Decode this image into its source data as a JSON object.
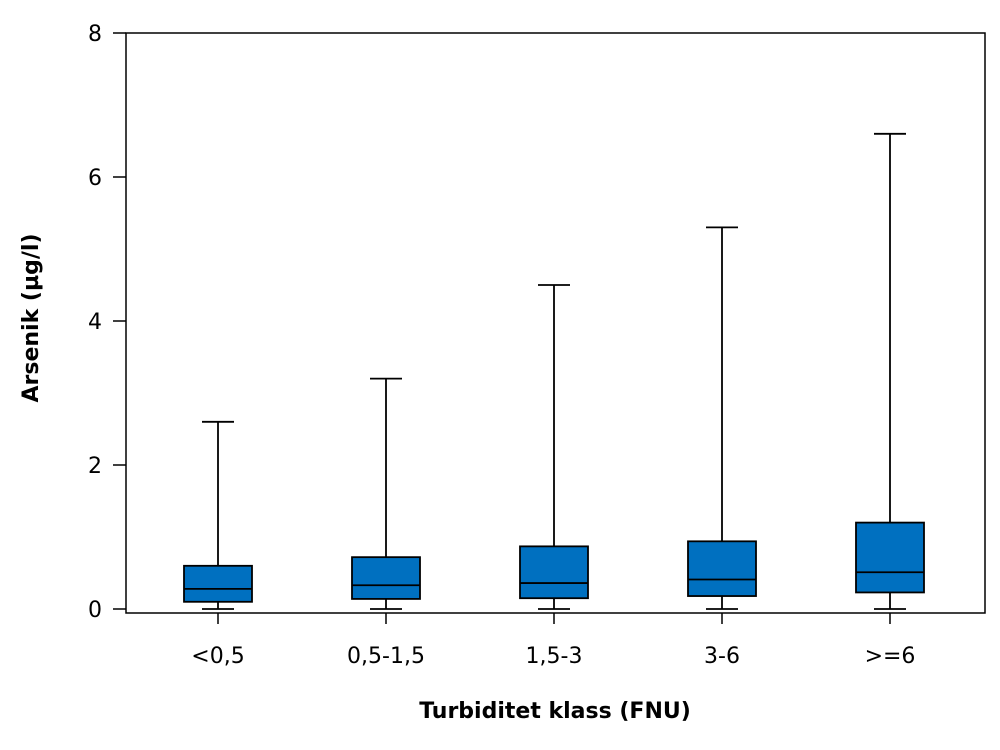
{
  "chart_data": {
    "type": "box",
    "title": "",
    "xlabel": "Turbiditet klass (FNU)",
    "ylabel": "Arsenik (µg/l)",
    "ylim": [
      0,
      8
    ],
    "yticks": [
      0,
      2,
      4,
      6,
      8
    ],
    "grid": false,
    "legend": "none",
    "box_color": "#0070C0",
    "categories": [
      "<0,5",
      "0,5-1,5",
      "1,5-3",
      "3-6",
      ">=6"
    ],
    "boxes": [
      {
        "min": 0.0,
        "q1": 0.1,
        "median": 0.28,
        "q3": 0.6,
        "max": 2.6
      },
      {
        "min": 0.0,
        "q1": 0.14,
        "median": 0.33,
        "q3": 0.72,
        "max": 3.2
      },
      {
        "min": 0.0,
        "q1": 0.15,
        "median": 0.36,
        "q3": 0.87,
        "max": 4.5
      },
      {
        "min": 0.0,
        "q1": 0.18,
        "median": 0.41,
        "q3": 0.94,
        "max": 5.3
      },
      {
        "min": 0.0,
        "q1": 0.23,
        "median": 0.51,
        "q3": 1.2,
        "max": 6.6
      }
    ]
  }
}
